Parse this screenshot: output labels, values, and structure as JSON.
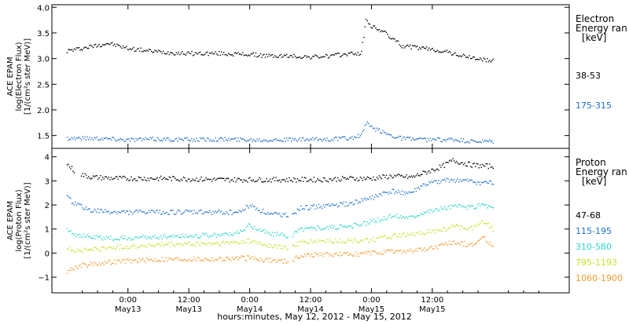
{
  "chart_data": [
    {
      "type": "scatter",
      "panel": "electron",
      "ylabel": [
        "ACE EPAM",
        "log(Electron Flux)",
        "[1/(cm²s ster MeV)]"
      ],
      "ylim": [
        1.25,
        4.05
      ],
      "yticks": [
        1.5,
        2.0,
        2.5,
        3.0,
        3.5,
        4.0
      ],
      "ytick_labels": [
        "1.5",
        "2.0",
        "2.5",
        "3.0",
        "3.5",
        "4.0"
      ],
      "legend_title": [
        "Electron",
        "Energy ran",
        "[keV]"
      ],
      "series": [
        {
          "name": "38-53",
          "color": "#000000",
          "x": [
            0,
            4,
            8,
            12,
            16,
            20,
            24,
            30,
            36,
            40,
            44,
            48,
            52,
            56,
            58,
            59,
            60,
            62,
            64,
            66,
            70,
            74,
            78,
            82,
            84
          ],
          "y": [
            3.15,
            3.22,
            3.3,
            3.2,
            3.15,
            3.12,
            3.1,
            3.1,
            3.08,
            3.05,
            3.05,
            3.03,
            3.05,
            3.1,
            3.1,
            3.78,
            3.62,
            3.55,
            3.4,
            3.25,
            3.2,
            3.15,
            3.05,
            2.98,
            2.95
          ]
        },
        {
          "name": "175-315",
          "color": "#1e6fd0",
          "x": [
            0,
            6,
            12,
            18,
            24,
            30,
            36,
            42,
            48,
            52,
            56,
            58,
            59,
            60,
            62,
            64,
            66,
            70,
            76,
            80,
            84
          ],
          "y": [
            1.45,
            1.45,
            1.42,
            1.43,
            1.42,
            1.43,
            1.42,
            1.42,
            1.42,
            1.43,
            1.45,
            1.5,
            1.75,
            1.65,
            1.58,
            1.5,
            1.45,
            1.42,
            1.42,
            1.38,
            1.38
          ]
        }
      ]
    },
    {
      "type": "scatter",
      "panel": "proton",
      "ylabel": [
        "ACE EPAM",
        "log(Proton Flux)",
        "[1/(cm²s ster MeV)]"
      ],
      "ylim": [
        -1.65,
        4.35
      ],
      "yticks": [
        -1,
        0,
        1,
        2,
        3,
        4
      ],
      "ytick_labels": [
        "−1",
        "0",
        "1",
        "2",
        "3",
        "4"
      ],
      "legend_title": [
        "Proton",
        "Energy ran",
        "[keV]"
      ],
      "series": [
        {
          "name": "47-68",
          "color": "#000000",
          "x": [
            0,
            2,
            5,
            10,
            20,
            30,
            40,
            50,
            56,
            60,
            64,
            68,
            70,
            74,
            76,
            78,
            80,
            84
          ],
          "y": [
            3.7,
            3.3,
            3.15,
            3.1,
            3.1,
            3.05,
            3.05,
            3.05,
            3.1,
            3.1,
            3.2,
            3.15,
            3.3,
            3.6,
            3.85,
            3.75,
            3.65,
            3.6
          ]
        },
        {
          "name": "115-195",
          "color": "#1e6fd0",
          "x": [
            0,
            2,
            5,
            10,
            20,
            30,
            34,
            36,
            40,
            44,
            46,
            50,
            56,
            60,
            62,
            64,
            68,
            70,
            74,
            76,
            80,
            84
          ],
          "y": [
            2.3,
            2.0,
            1.75,
            1.7,
            1.7,
            1.7,
            1.7,
            2.0,
            1.6,
            1.6,
            1.85,
            1.95,
            2.05,
            2.3,
            2.45,
            2.55,
            2.5,
            2.8,
            3.0,
            3.05,
            2.95,
            2.9
          ]
        },
        {
          "name": "310-580",
          "color": "#2ad4c8",
          "x": [
            0,
            2,
            5,
            10,
            20,
            30,
            34,
            36,
            40,
            44,
            46,
            50,
            56,
            60,
            62,
            64,
            68,
            70,
            74,
            76,
            80,
            82,
            84
          ],
          "y": [
            1.0,
            0.75,
            0.65,
            0.6,
            0.7,
            0.75,
            0.85,
            1.15,
            0.8,
            0.7,
            1.0,
            1.05,
            1.1,
            1.3,
            1.4,
            1.55,
            1.5,
            1.7,
            1.85,
            1.95,
            1.9,
            2.05,
            1.85
          ]
        },
        {
          "name": "795-1193",
          "color": "#c8e02a",
          "x": [
            0,
            2,
            5,
            10,
            20,
            30,
            36,
            40,
            44,
            46,
            50,
            56,
            60,
            64,
            68,
            70,
            74,
            76,
            80,
            82,
            84
          ],
          "y": [
            0.2,
            0.1,
            0.15,
            0.25,
            0.35,
            0.4,
            0.5,
            0.3,
            0.2,
            0.45,
            0.5,
            0.5,
            0.55,
            0.7,
            0.75,
            0.85,
            0.95,
            1.1,
            1.05,
            1.35,
            1.0
          ]
        },
        {
          "name": "1060-1900",
          "color": "#f09a2a",
          "x": [
            0,
            2,
            5,
            10,
            20,
            30,
            36,
            40,
            44,
            46,
            50,
            56,
            60,
            64,
            68,
            70,
            74,
            76,
            80,
            82,
            84
          ],
          "y": [
            -0.75,
            -0.55,
            -0.45,
            -0.35,
            -0.25,
            -0.25,
            -0.2,
            -0.3,
            -0.35,
            -0.1,
            -0.05,
            -0.05,
            0.0,
            0.05,
            0.1,
            0.15,
            0.3,
            0.45,
            0.35,
            0.65,
            0.3
          ]
        }
      ]
    }
  ],
  "xaxis": {
    "xlim": [
      -3,
      99
    ],
    "ticks": [
      {
        "x": 12,
        "line1": "0:00",
        "line2": "May13"
      },
      {
        "x": 24,
        "line1": "12:00",
        "line2": "May13"
      },
      {
        "x": 36,
        "line1": "0:00",
        "line2": "May14"
      },
      {
        "x": 48,
        "line1": "12:00",
        "line2": "May14"
      },
      {
        "x": 60,
        "line1": "0:00",
        "line2": "May15"
      },
      {
        "x": 72,
        "line1": "12:00",
        "line2": "May15"
      }
    ],
    "title": "hours:minutes, May 12, 2012 - May 15, 2012"
  }
}
